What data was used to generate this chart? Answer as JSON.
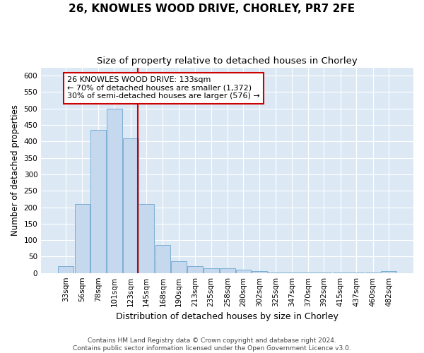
{
  "title": "26, KNOWLES WOOD DRIVE, CHORLEY, PR7 2FE",
  "subtitle": "Size of property relative to detached houses in Chorley",
  "xlabel": "Distribution of detached houses by size in Chorley",
  "ylabel": "Number of detached properties",
  "footer_line1": "Contains HM Land Registry data © Crown copyright and database right 2024.",
  "footer_line2": "Contains public sector information licensed under the Open Government Licence v3.0.",
  "annotation_line1": "26 KNOWLES WOOD DRIVE: 133sqm",
  "annotation_line2": "← 70% of detached houses are smaller (1,372)",
  "annotation_line3": "30% of semi-detached houses are larger (576) →",
  "property_size": 133,
  "bar_color": "#c5d8ed",
  "bar_edge_color": "#7aafd4",
  "vline_color": "#cc0000",
  "annotation_box_color": "#cc0000",
  "plot_bg_color": "#dce9f5",
  "categories": [
    33,
    56,
    78,
    101,
    123,
    145,
    168,
    190,
    213,
    235,
    258,
    280,
    302,
    325,
    347,
    370,
    392,
    415,
    437,
    460,
    482
  ],
  "bar_heights": [
    20,
    210,
    435,
    500,
    410,
    210,
    85,
    35,
    20,
    15,
    15,
    10,
    5,
    2,
    1,
    1,
    1,
    1,
    1,
    1,
    5
  ],
  "ylim": [
    0,
    625
  ],
  "yticks": [
    0,
    50,
    100,
    150,
    200,
    250,
    300,
    350,
    400,
    450,
    500,
    550,
    600
  ],
  "grid_color": "#ffffff",
  "title_fontsize": 11,
  "subtitle_fontsize": 9.5,
  "xlabel_fontsize": 9,
  "ylabel_fontsize": 8.5,
  "tick_fontsize": 7.5,
  "annotation_fontsize": 8,
  "footer_fontsize": 6.5
}
